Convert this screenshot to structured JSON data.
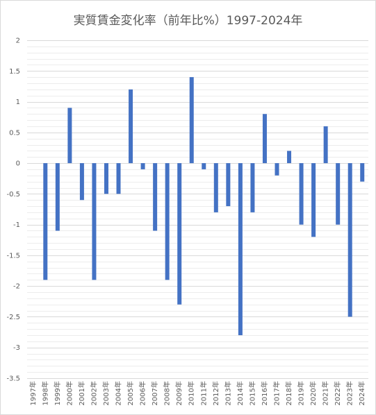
{
  "chart_data": {
    "type": "bar",
    "title": "実質賃金変化率（前年比%）1997-2024年",
    "xlabel": "",
    "ylabel": "",
    "ylim": [
      -3.5,
      2
    ],
    "yticks": [
      2,
      1.5,
      1,
      0.5,
      0,
      -0.5,
      -1,
      -1.5,
      -2,
      -2.5,
      -3,
      -3.5
    ],
    "ytick_labels": [
      "2",
      "1.5",
      "1",
      "0.5",
      "0",
      "-0.5",
      "-1",
      "-1.5",
      "-2",
      "-2.5",
      "-3",
      "-3.5"
    ],
    "grid": true,
    "legend": "none",
    "bar_color": "#4472c4",
    "grid_color": "#d9d9d9",
    "categories": [
      "1997年",
      "1998年",
      "1999年",
      "2000年",
      "2001年",
      "2002年",
      "2003年",
      "2004年",
      "2005年",
      "2006年",
      "2007年",
      "2008年",
      "2009年",
      "2010年",
      "2011年",
      "2012年",
      "2013年",
      "2014年",
      "2015年",
      "2016年",
      "2017年",
      "2018年",
      "2019年",
      "2020年",
      "2021年",
      "2022年",
      "2023年",
      "2024年"
    ],
    "values": [
      0,
      -1.9,
      -1.1,
      0.9,
      -0.6,
      -1.9,
      -0.5,
      -0.5,
      1.2,
      -0.1,
      -1.1,
      -1.9,
      -2.3,
      1.4,
      -0.1,
      -0.8,
      -0.7,
      -2.8,
      -0.8,
      0.8,
      -0.2,
      0.2,
      -1.0,
      -1.2,
      0.6,
      -1.0,
      -2.5,
      -0.3
    ]
  }
}
